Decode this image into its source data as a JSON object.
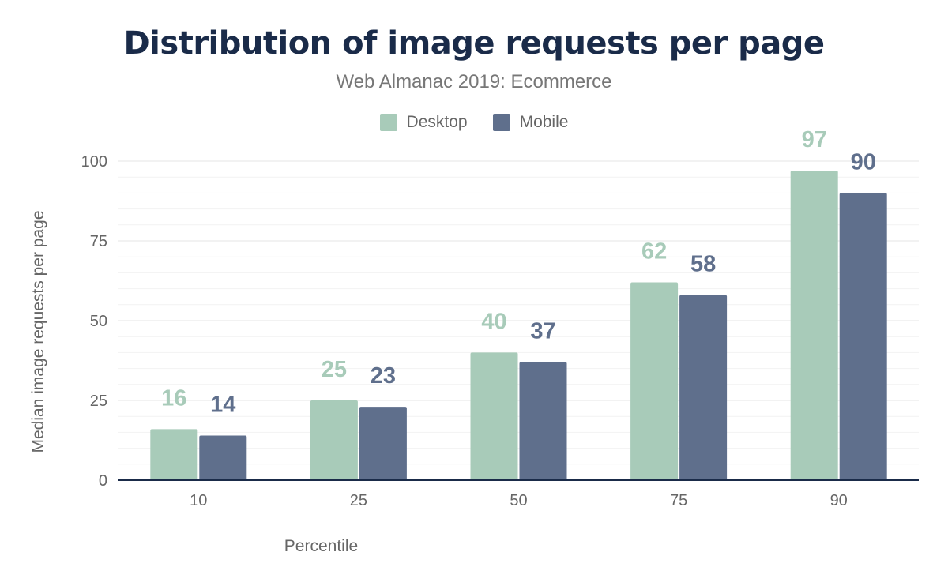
{
  "chart_data": {
    "type": "bar",
    "title": "Distribution of image requests per page",
    "subtitle": "Web Almanac 2019: Ecommerce",
    "xlabel": "Percentile",
    "ylabel": "Median image requests per page",
    "categories": [
      "10",
      "25",
      "50",
      "75",
      "90"
    ],
    "series": [
      {
        "name": "Desktop",
        "color": "#a8cbb9",
        "values": [
          16,
          25,
          40,
          62,
          97
        ]
      },
      {
        "name": "Mobile",
        "color": "#5f6f8c",
        "values": [
          14,
          23,
          37,
          58,
          90
        ]
      }
    ],
    "ylim": [
      0,
      100
    ],
    "yticks": [
      0,
      25,
      50,
      75,
      100
    ],
    "grid": true,
    "legend": "top-center",
    "data_labels": true
  }
}
